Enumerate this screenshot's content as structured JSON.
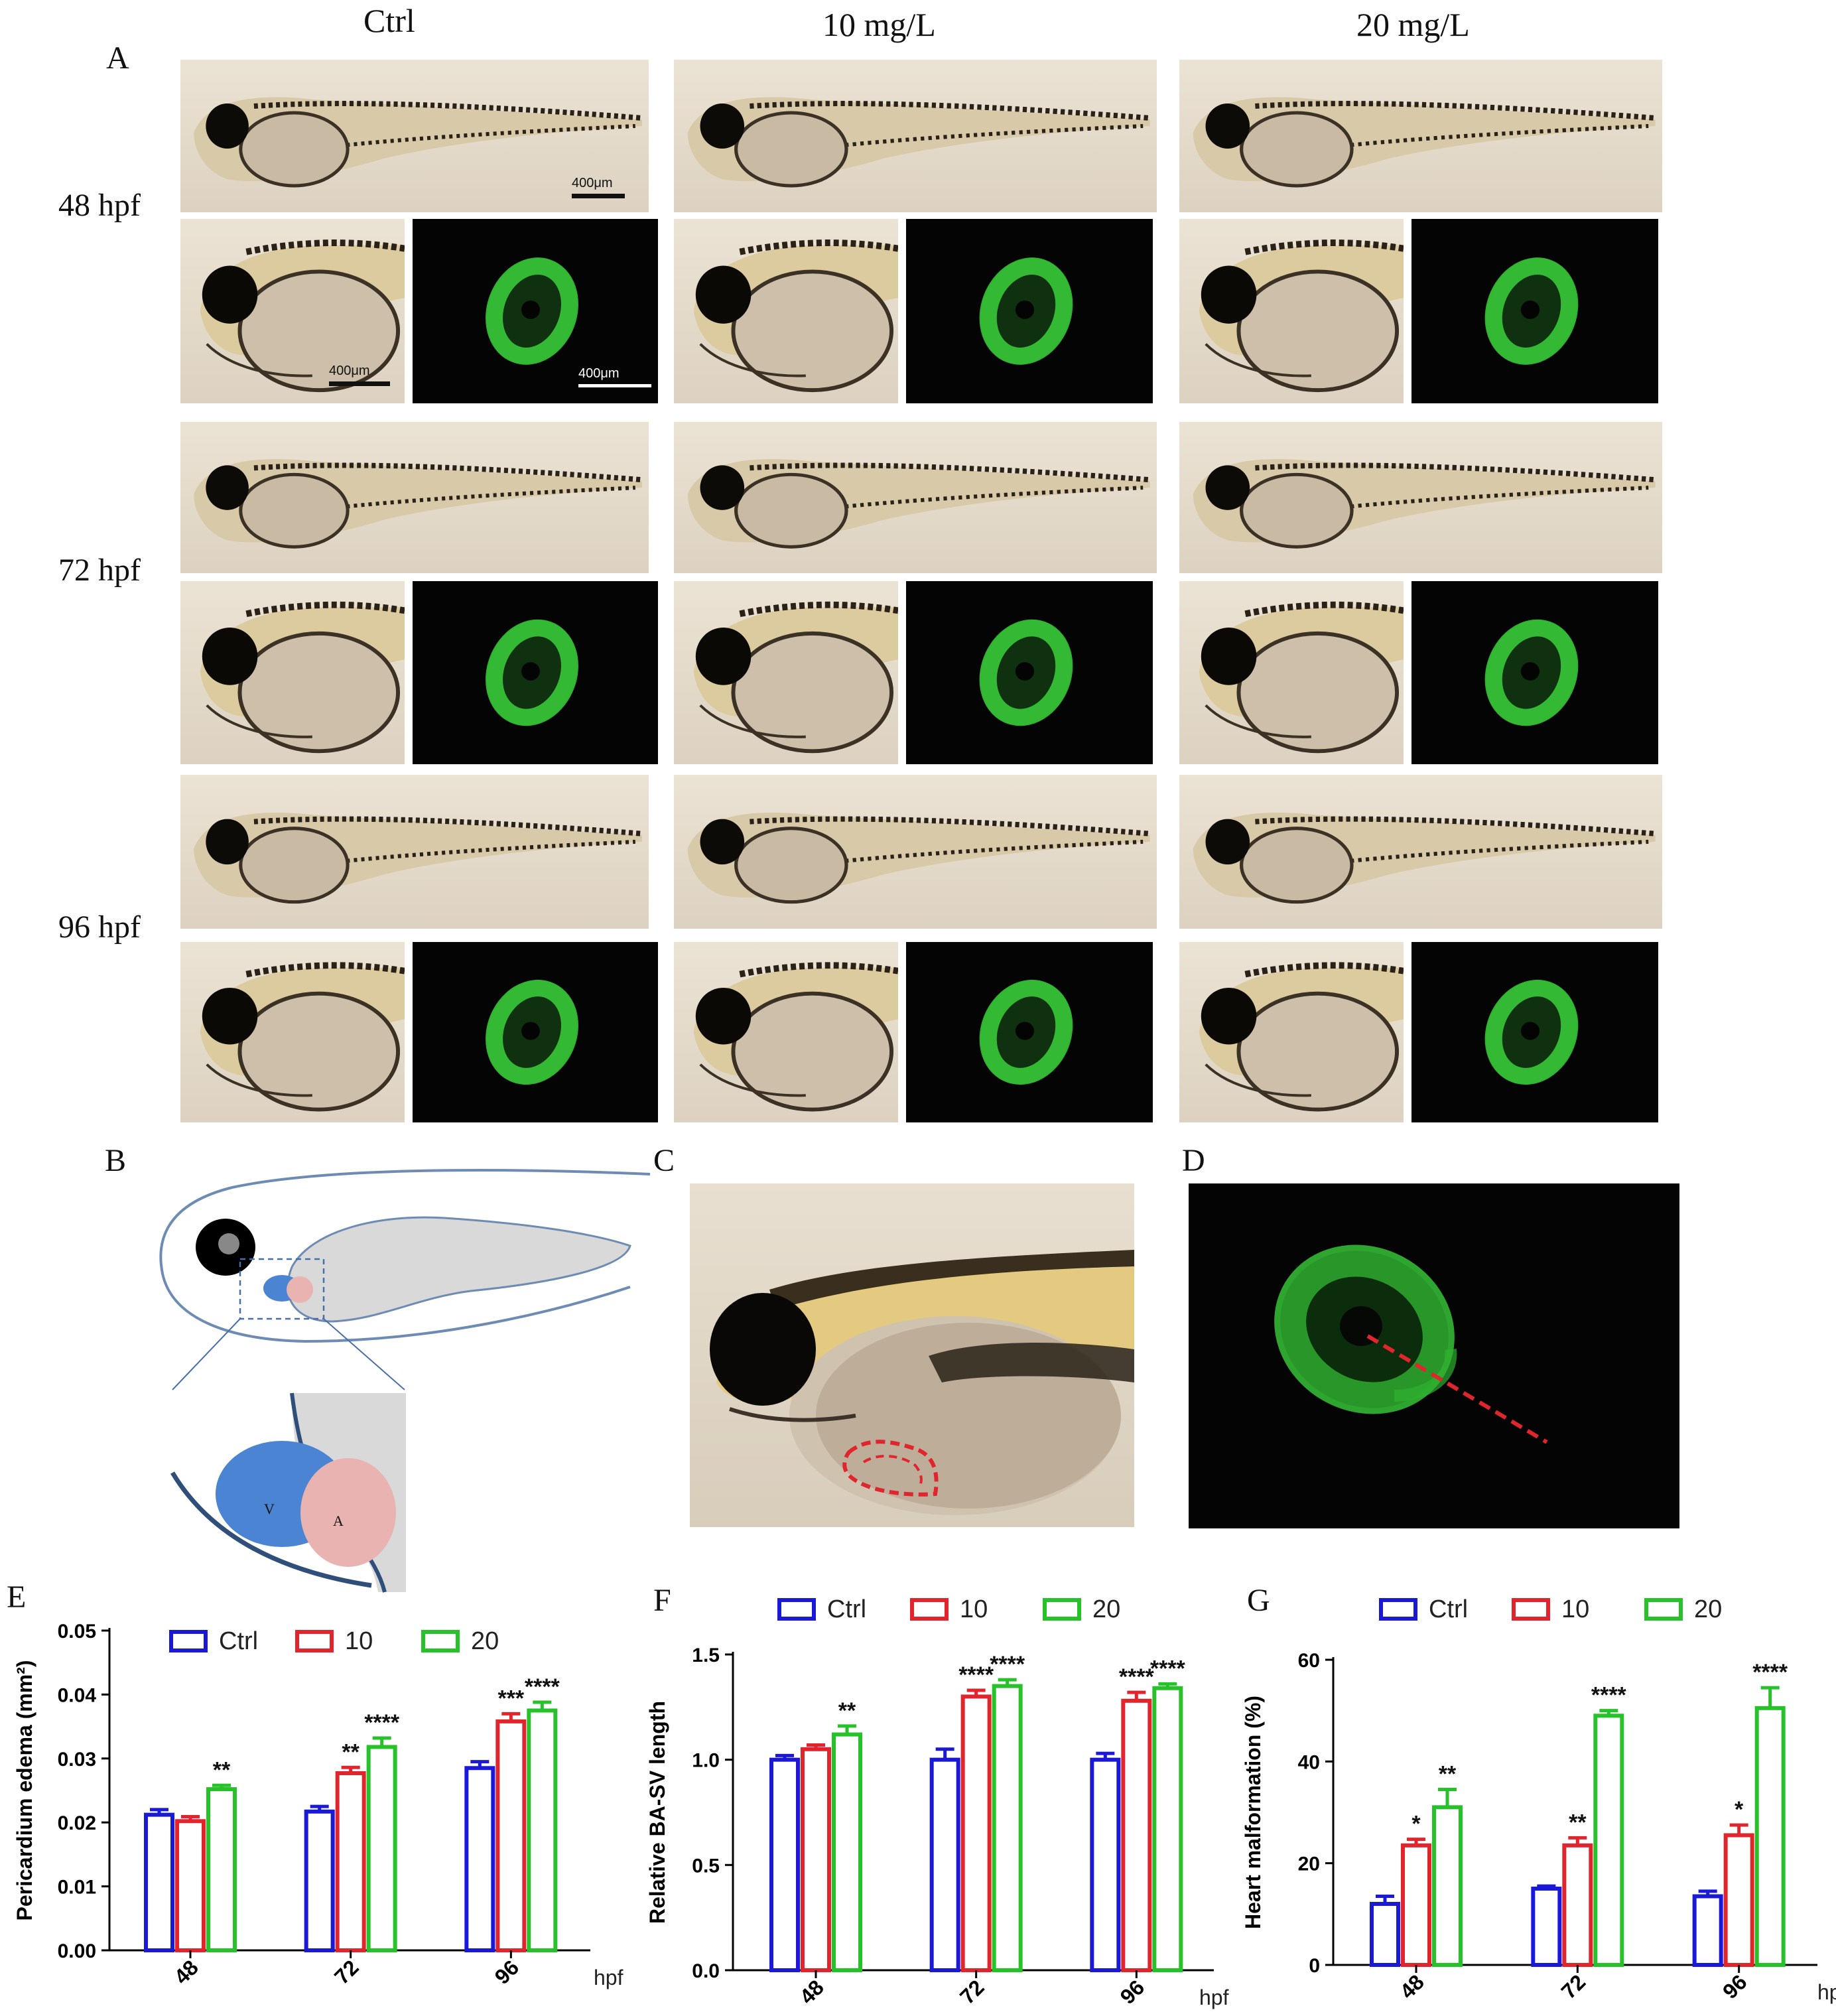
{
  "panels": {
    "A": {
      "label": "A",
      "column_headers": [
        "Ctrl",
        "10 mg/L",
        "20 mg/L"
      ],
      "row_headers": [
        "48 hpf",
        "72 hpf",
        "96 hpf"
      ],
      "scale_bar": "400μm",
      "fluorescence_color": "#39d13a"
    },
    "B": {
      "label": "B",
      "ventricle_label": "V",
      "atrium_label": "A",
      "ventricle_color": "#4a84d2",
      "atrium_color": "#e9b3b1",
      "yolk_color": "#d9d9d9"
    },
    "C": {
      "label": "C",
      "annotation_color": "#e0252c"
    },
    "D": {
      "label": "D",
      "annotation_color": "#e0252c"
    },
    "E": {
      "label": "E"
    },
    "F": {
      "label": "F"
    },
    "G": {
      "label": "G"
    }
  },
  "series_colors": {
    "Ctrl": "#1a1ad6",
    "10": "#e0252c",
    "20": "#27c22a"
  },
  "chart_data": [
    {
      "type": "bar",
      "panel": "E",
      "categories": [
        "48",
        "72",
        "96"
      ],
      "xunit": "hpf",
      "ylabel": "Pericardium edema (mm²)",
      "ylim": [
        0,
        0.05
      ],
      "yticks": [
        "0.00",
        "0.01",
        "0.02",
        "0.03",
        "0.04",
        "0.05"
      ],
      "legend_position": "top",
      "series": [
        {
          "name": "Ctrl",
          "values": [
            0.0212,
            0.0217,
            0.0285
          ],
          "errors": [
            0.0008,
            0.0008,
            0.001
          ],
          "sig": [
            "",
            "",
            ""
          ]
        },
        {
          "name": "10",
          "values": [
            0.0202,
            0.0277,
            0.0358
          ],
          "errors": [
            0.0007,
            0.0009,
            0.0012
          ],
          "sig": [
            "",
            "**",
            "***"
          ]
        },
        {
          "name": "20",
          "values": [
            0.0252,
            0.0318,
            0.0375
          ],
          "errors": [
            0.0006,
            0.0014,
            0.0013
          ],
          "sig": [
            "**",
            "****",
            "****"
          ]
        }
      ]
    },
    {
      "type": "bar",
      "panel": "F",
      "categories": [
        "48",
        "72",
        "96"
      ],
      "xunit": "hpf",
      "ylabel": "Relative BA-SV length",
      "ylim": [
        0,
        1.5
      ],
      "yticks": [
        "0.0",
        "0.5",
        "1.0",
        "1.5"
      ],
      "legend_position": "top",
      "series": [
        {
          "name": "Ctrl",
          "values": [
            1.0,
            1.0,
            1.0
          ],
          "errors": [
            0.02,
            0.05,
            0.03
          ],
          "sig": [
            "",
            "",
            ""
          ]
        },
        {
          "name": "10",
          "values": [
            1.05,
            1.3,
            1.28
          ],
          "errors": [
            0.02,
            0.03,
            0.04
          ],
          "sig": [
            "",
            "****",
            "****"
          ]
        },
        {
          "name": "20",
          "values": [
            1.12,
            1.35,
            1.34
          ],
          "errors": [
            0.04,
            0.03,
            0.02
          ],
          "sig": [
            "**",
            "****",
            "****"
          ]
        }
      ]
    },
    {
      "type": "bar",
      "panel": "G",
      "categories": [
        "48",
        "72",
        "96"
      ],
      "xunit": "hpf",
      "ylabel": "Heart malformation (%)",
      "ylim": [
        0,
        60
      ],
      "yticks": [
        "0",
        "20",
        "40",
        "60"
      ],
      "legend_position": "top",
      "series": [
        {
          "name": "Ctrl",
          "values": [
            12,
            15,
            13.5
          ],
          "errors": [
            1.5,
            0.5,
            1.0
          ],
          "sig": [
            "",
            "",
            ""
          ]
        },
        {
          "name": "10",
          "values": [
            23.5,
            23.5,
            25.5
          ],
          "errors": [
            1.2,
            1.5,
            2.0
          ],
          "sig": [
            "*",
            "**",
            "*"
          ]
        },
        {
          "name": "20",
          "values": [
            31,
            49,
            50.5
          ],
          "errors": [
            3.5,
            1.0,
            4.0
          ],
          "sig": [
            "**",
            "****",
            "****"
          ]
        }
      ]
    }
  ]
}
